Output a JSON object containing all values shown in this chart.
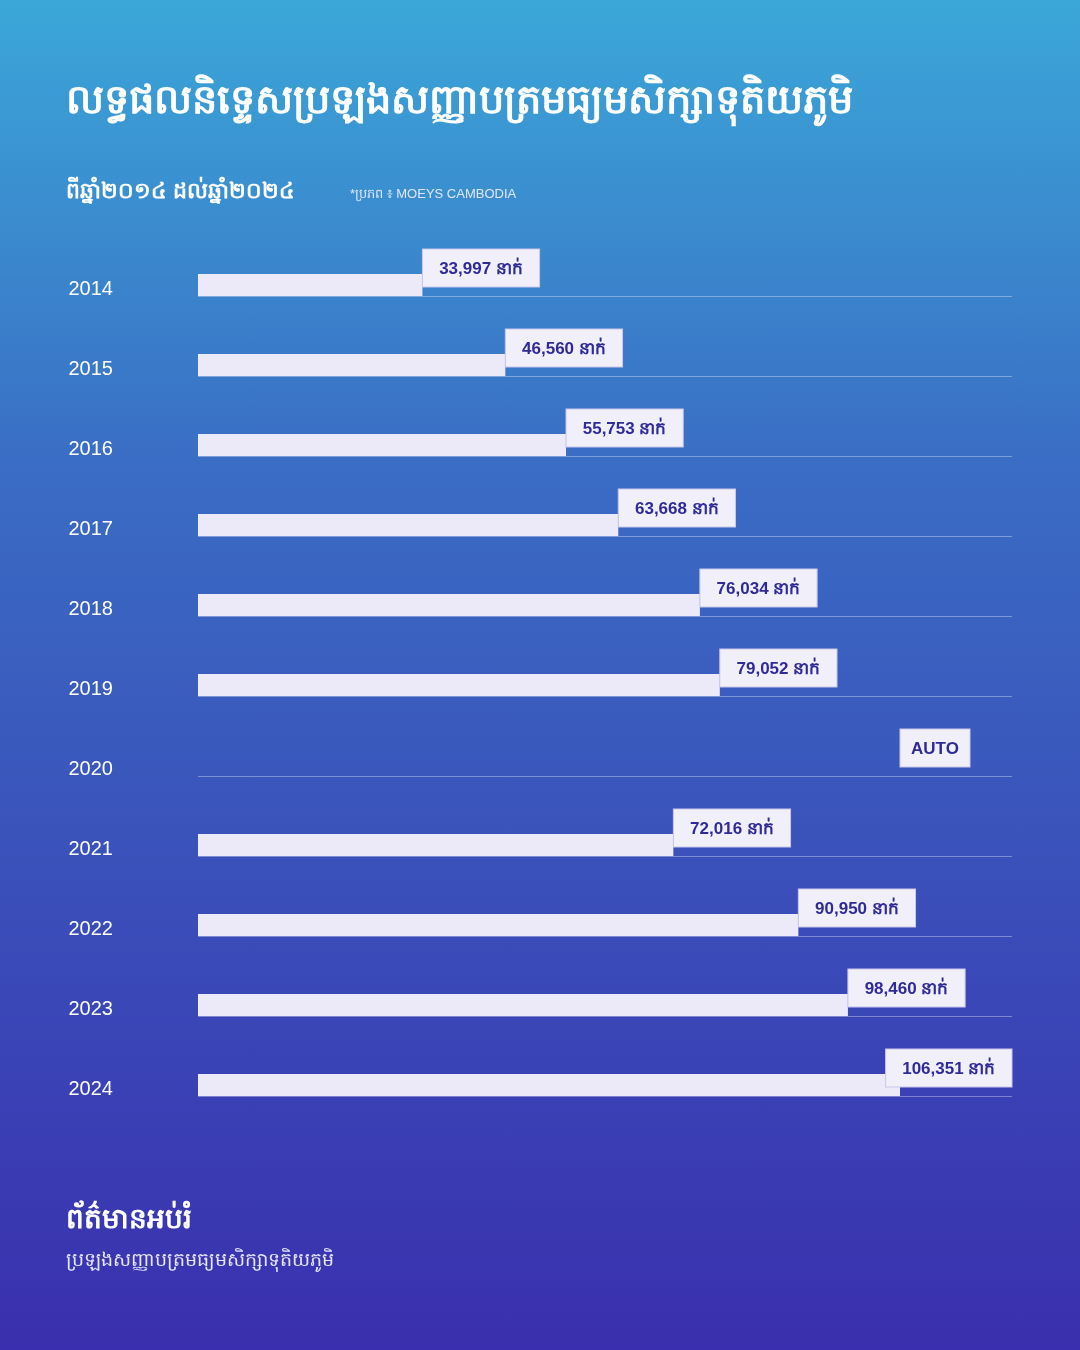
{
  "chart_data": {
    "type": "bar",
    "orientation": "horizontal",
    "title": "លទ្ធផលនិទ្ទេសប្រឡងសញ្ញាបត្រមធ្យមសិក្សាទុតិយភូមិ",
    "subtitle": "ពីឆ្នាំ២០១៤ ដល់ឆ្នាំ២០២៤",
    "annotations": [
      "*ប្រភព ៖ MOEYS CAMBODIA",
      "ព័ត៌មានអប់រំ",
      "ប្រឡងសញ្ញាបត្រមធ្យមសិក្សាទុតិយភូមិ"
    ],
    "categories": [
      "2014",
      "2015",
      "2016",
      "2017",
      "2018",
      "2019",
      "2020",
      "2021",
      "2022",
      "2023",
      "2024"
    ],
    "values": [
      33997,
      46560,
      55753,
      63668,
      76034,
      79052,
      null,
      72016,
      90950,
      98460,
      106351
    ],
    "value_labels": [
      "33,997 នាក់",
      "46,560 នាក់",
      "55,753 នាក់",
      "63,668 នាក់",
      "76,034 នាក់",
      "79,052 នាក់",
      "AUTO",
      "72,016 នាក់",
      "90,950 នាក់",
      "98,460 នាក់",
      "106,351 នាក់"
    ],
    "color": "#eceaf8"
  }
}
